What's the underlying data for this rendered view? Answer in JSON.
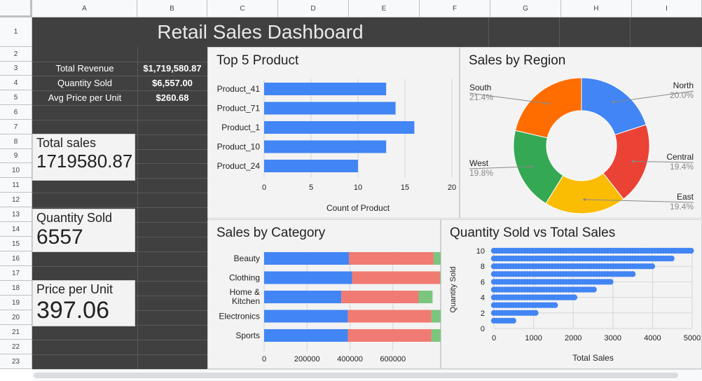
{
  "columns": [
    "A",
    "B",
    "C",
    "D",
    "E",
    "F",
    "G",
    "H",
    "I"
  ],
  "rows": [
    "1",
    "2",
    "3",
    "4",
    "5",
    "6",
    "7",
    "8",
    "9",
    "10",
    "11",
    "12",
    "13",
    "14",
    "15",
    "16",
    "17",
    "18",
    "19",
    "20",
    "21",
    "22",
    "23"
  ],
  "dashboard_title": "Retail Sales Dashboard",
  "kpis": [
    {
      "label": "Total Revenue",
      "value": "$1,719,580.87"
    },
    {
      "label": "Quantity Sold",
      "value": "$6,557.00"
    },
    {
      "label": "Avg Price per Unit",
      "value": "$260.68"
    }
  ],
  "cards": [
    {
      "label": "Total sales",
      "value": "1719580.87"
    },
    {
      "label": "Quantity Sold",
      "value": "6557"
    },
    {
      "label": "Price per Unit",
      "value": "397.06"
    }
  ],
  "colors": {
    "blue": "#4285f4",
    "red": "#ea4335",
    "yellow": "#fbbc04",
    "green": "#34a853",
    "orange": "#ff6d01",
    "salmon": "#f07b72",
    "lightgreen": "#7bc67e"
  },
  "chart_data": [
    {
      "type": "bar",
      "title": "Top 5 Product",
      "categories": [
        "Product_41",
        "Product_71",
        "Product_1",
        "Product_10",
        "Product_24"
      ],
      "values": [
        13,
        14,
        16,
        13,
        10
      ],
      "xlabel": "Count of Product",
      "xlim": [
        0,
        20
      ],
      "xticks": [
        "0",
        "5",
        "10",
        "15",
        "20"
      ]
    },
    {
      "type": "pie",
      "title": "Sales by Region",
      "labels": [
        "North",
        "Central",
        "East",
        "West",
        "South"
      ],
      "values": [
        20.0,
        19.4,
        19.4,
        19.8,
        21.4
      ],
      "display": [
        "20.0%",
        "19.4%",
        "19.4%",
        "19.8%",
        "21.4%"
      ]
    },
    {
      "type": "bar",
      "title": "Sales by Category",
      "categories": [
        "Beauty",
        "Clothing",
        "Home & Kitchen",
        "Electronics",
        "Sports"
      ],
      "series": [
        {
          "values": [
            395000,
            410000,
            360000,
            390000,
            390000
          ]
        },
        {
          "values": [
            395000,
            410000,
            360000,
            390000,
            390000
          ]
        },
        {
          "values": [
            70000,
            75000,
            65000,
            70000,
            70000
          ]
        }
      ],
      "xlim": [
        0,
        800000
      ],
      "xticks": [
        "0",
        "200000",
        "400000",
        "600000"
      ]
    },
    {
      "type": "scatter",
      "title": "Quantity Sold vs Total Sales",
      "xlabel": "Total Sales",
      "ylabel": "Quantity Sold",
      "xlim": [
        0,
        5000
      ],
      "ylim": [
        0,
        10
      ],
      "xticks": [
        "0",
        "1000",
        "2000",
        "3000",
        "4000",
        "5000"
      ],
      "yticks": [
        "0",
        "2",
        "4",
        "6",
        "8",
        "10"
      ],
      "x_ranges": [
        [
          0,
          550
        ],
        [
          0,
          1050
        ],
        [
          0,
          1550
        ],
        [
          0,
          2050
        ],
        [
          0,
          2550
        ],
        [
          0,
          3000
        ],
        [
          0,
          3500
        ],
        [
          0,
          4000
        ],
        [
          0,
          4500
        ],
        [
          0,
          5000
        ]
      ],
      "y": [
        1,
        2,
        3,
        4,
        5,
        6,
        7,
        8,
        9,
        10
      ]
    }
  ]
}
